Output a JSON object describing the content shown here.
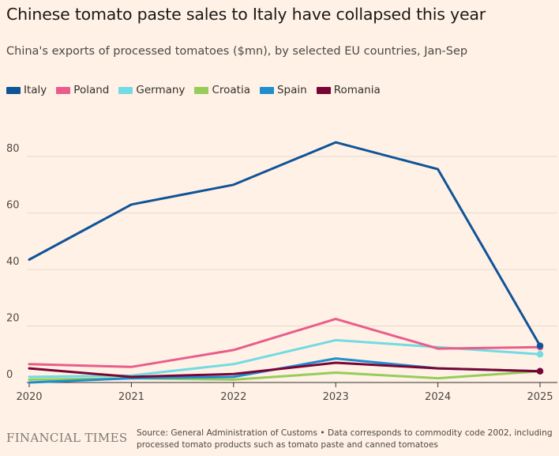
{
  "chart_data": {
    "type": "line",
    "title": "Chinese tomato paste sales to Italy have collapsed this year",
    "subtitle": "China's exports of processed tomatoes ($mn), by selected EU countries, Jan-Sep",
    "x": [
      "2020",
      "2021",
      "2022",
      "2023",
      "2024",
      "2025"
    ],
    "y_ticks": [
      "0",
      "20",
      "40",
      "60",
      "80"
    ],
    "ylim": [
      0,
      95
    ],
    "grid": true,
    "legend_position": "top-left",
    "series": [
      {
        "name": "Italy",
        "color": "#0f5499",
        "values": [
          43.5,
          63,
          70,
          85,
          75.5,
          13
        ]
      },
      {
        "name": "Poland",
        "color": "#e95d8c",
        "values": [
          6.5,
          5.5,
          11.5,
          22.5,
          12,
          12.5
        ]
      },
      {
        "name": "Germany",
        "color": "#72dbe4",
        "values": [
          2,
          2.5,
          6.5,
          15,
          12.5,
          10
        ]
      },
      {
        "name": "Croatia",
        "color": "#96cc5a",
        "values": [
          1,
          1.5,
          1,
          3.5,
          1.5,
          4
        ]
      },
      {
        "name": "Spain",
        "color": "#1f8ece",
        "values": [
          0,
          1.5,
          2,
          8.5,
          5,
          4
        ]
      },
      {
        "name": "Romania",
        "color": "#790536",
        "values": [
          5,
          2,
          3,
          7,
          5,
          4
        ]
      }
    ]
  },
  "footer": {
    "logo": "FINANCIAL TIMES",
    "source": "Source: General Administration of Customs • Data corresponds to commodity code 2002, including processed tomato products such as tomato paste and canned tomatoes"
  }
}
